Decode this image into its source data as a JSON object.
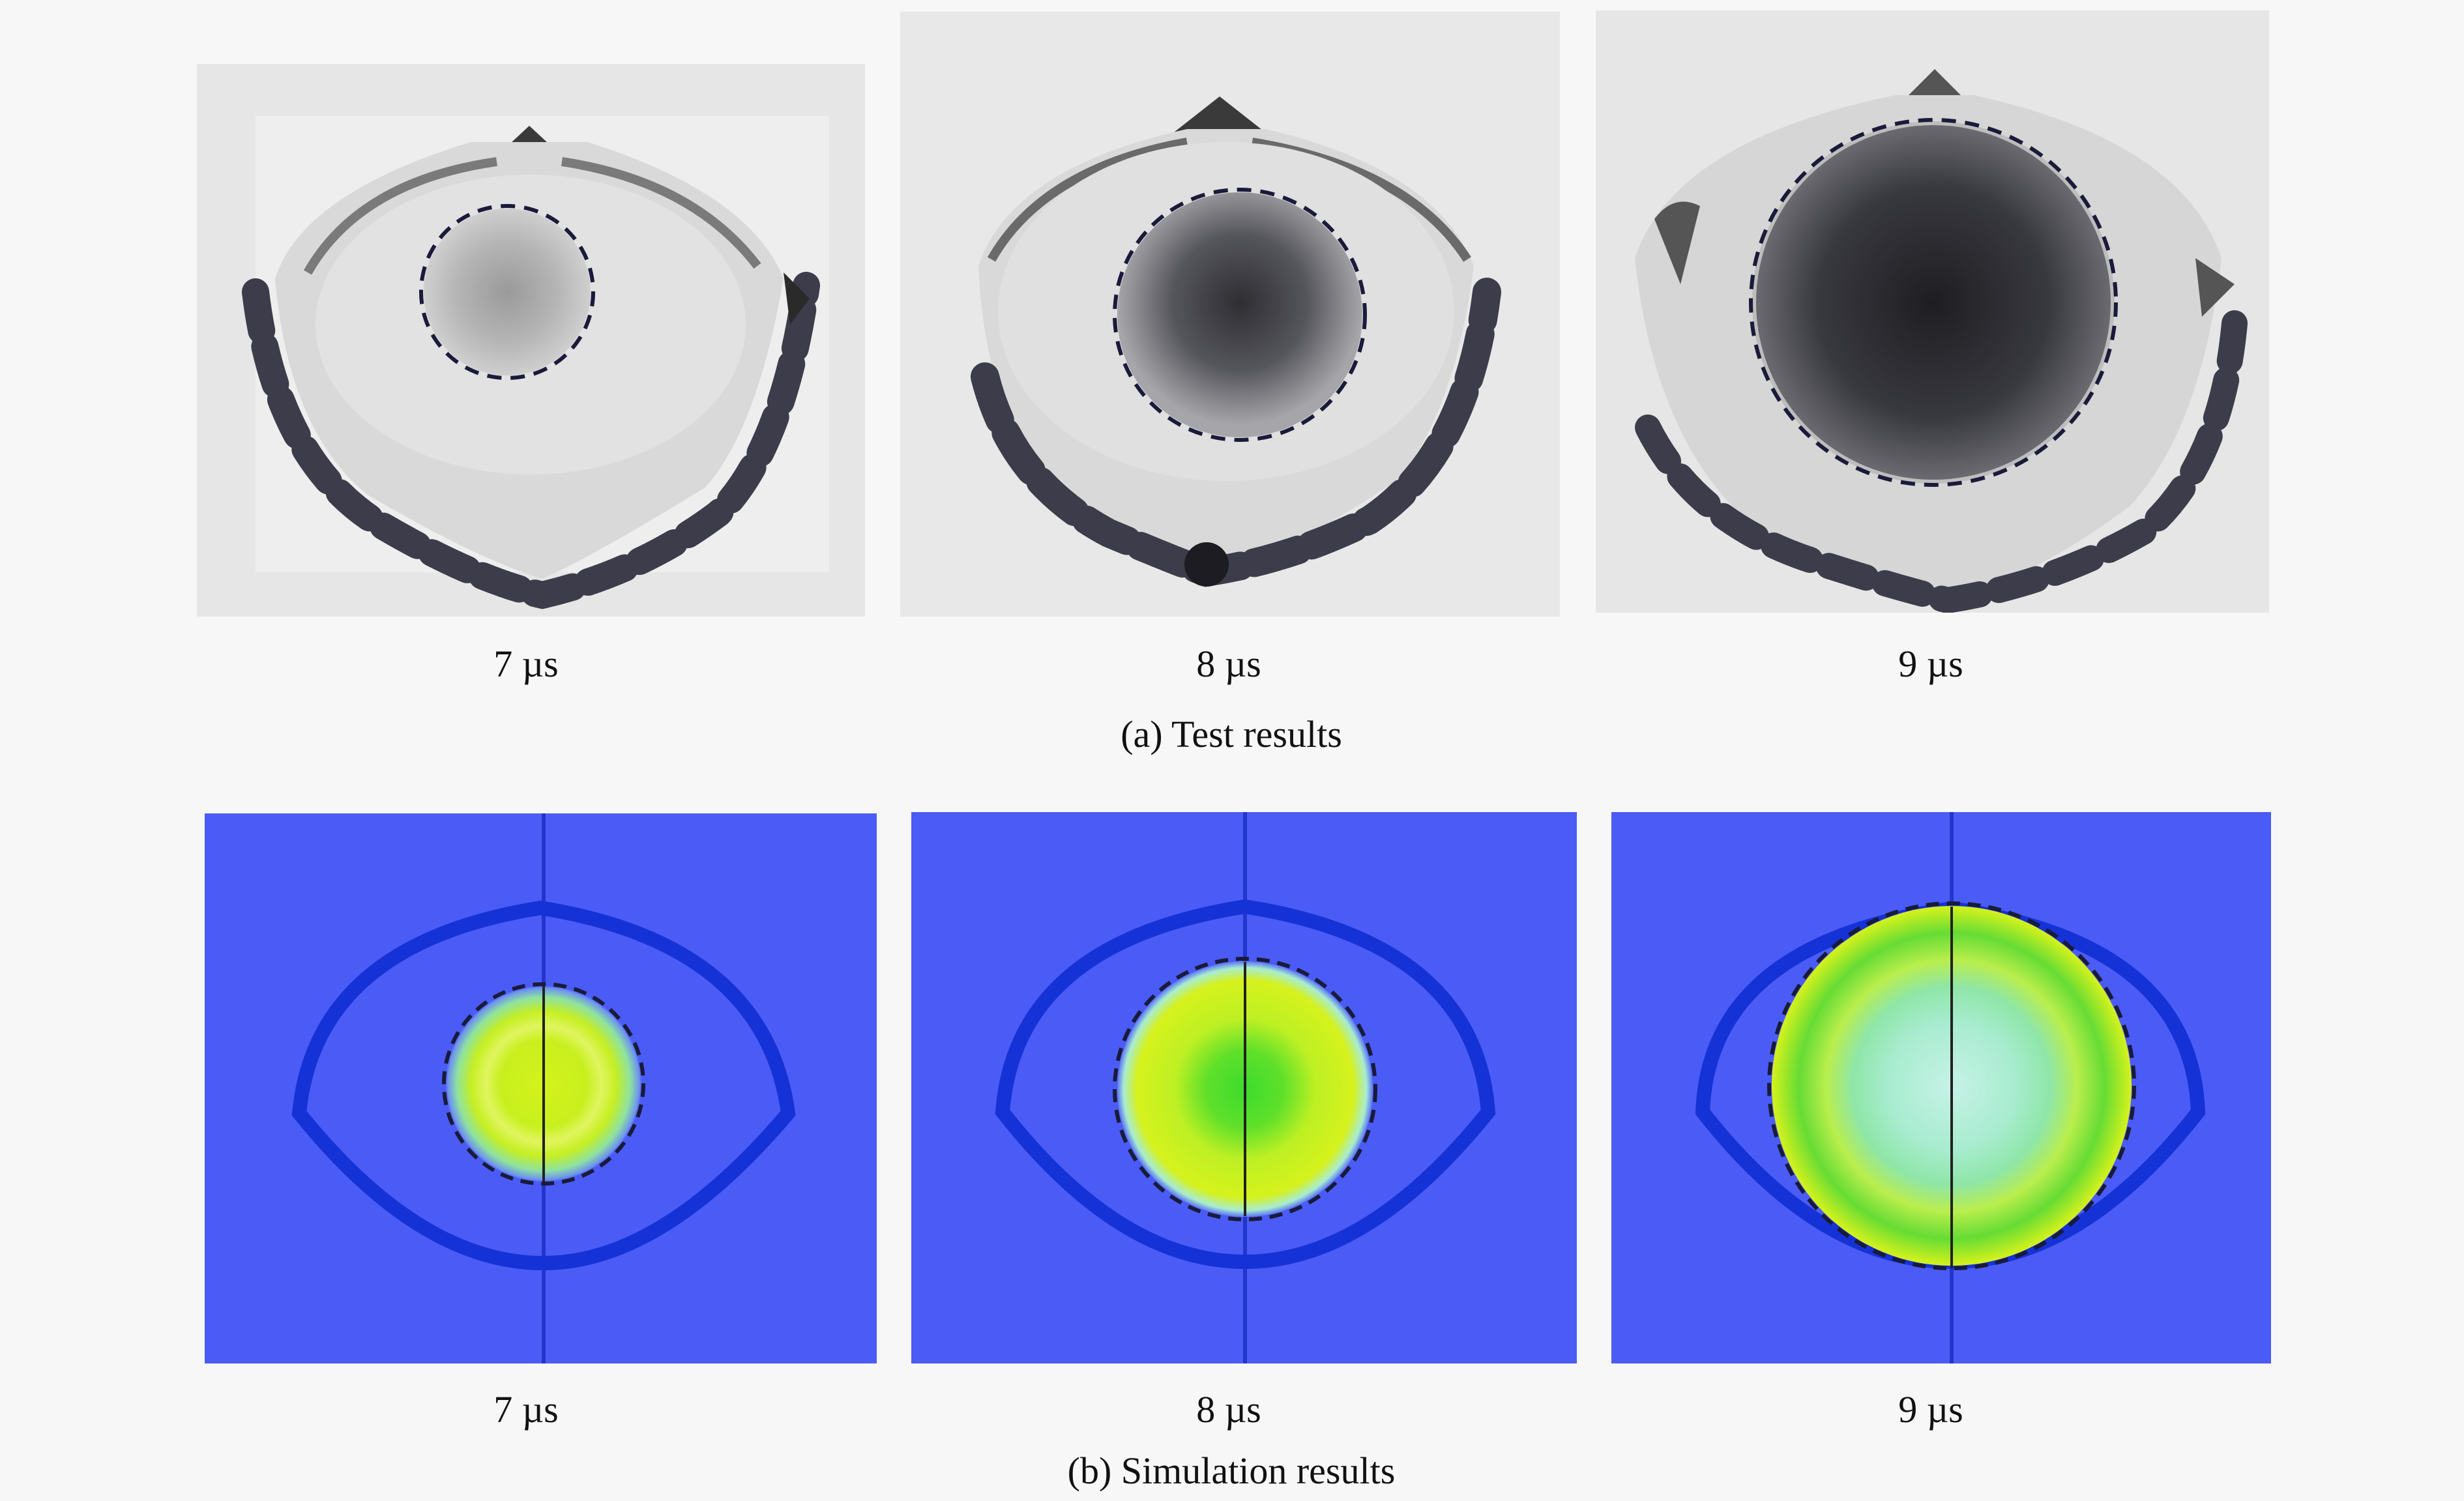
{
  "figure": {
    "row_a": {
      "caption": "(a) Test results",
      "panels": [
        {
          "time_label": "7 µs"
        },
        {
          "time_label": "8 µs"
        },
        {
          "time_label": "9 µs"
        }
      ]
    },
    "row_b": {
      "caption": "(b) Simulation results",
      "panels": [
        {
          "time_label": "7 µs"
        },
        {
          "time_label": "8 µs"
        },
        {
          "time_label": "9 µs"
        }
      ]
    }
  },
  "colors": {
    "background": "#f7f7f7",
    "sim_field": "#4a5cf5",
    "sim_outline": "#1532d6",
    "sim_yellow": "#d4f21c",
    "sim_green": "#3ddb2e",
    "sim_cyan": "#a8ecd0",
    "dashed_circle": "#1a1a3a"
  }
}
